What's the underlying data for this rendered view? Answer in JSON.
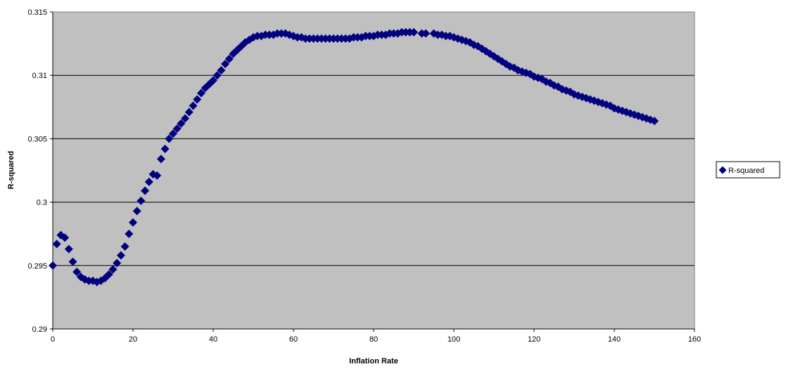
{
  "chart_data": {
    "type": "scatter",
    "xlabel": "Inflation Rate",
    "ylabel": "R-squared",
    "xlim": [
      0,
      160
    ],
    "ylim": [
      0.29,
      0.315
    ],
    "x_ticks": [
      0,
      20,
      40,
      60,
      80,
      100,
      120,
      140,
      160
    ],
    "y_ticks": [
      0.29,
      0.295,
      0.3,
      0.305,
      0.31,
      0.315
    ],
    "x_tick_labels": [
      "0",
      "20",
      "40",
      "60",
      "80",
      "100",
      "120",
      "140",
      "160"
    ],
    "y_tick_labels": [
      "0.29",
      "0.295",
      "0.3",
      "0.305",
      "0.31",
      "0.315"
    ],
    "grid": "horizontal",
    "legend_position": "right",
    "colors": {
      "plot_background": "#c0c0c0",
      "marker": "#000080",
      "gridline": "#000000"
    },
    "series": [
      {
        "name": "R-squared",
        "marker": "diamond",
        "points": [
          [
            0,
            0.295
          ],
          [
            1,
            0.2967
          ],
          [
            2,
            0.2974
          ],
          [
            3,
            0.2972
          ],
          [
            4,
            0.2963
          ],
          [
            5,
            0.2953
          ],
          [
            6,
            0.2945
          ],
          [
            7,
            0.2941
          ],
          [
            8,
            0.2939
          ],
          [
            9,
            0.2938
          ],
          [
            10,
            0.2938
          ],
          [
            11,
            0.2937
          ],
          [
            12,
            0.2938
          ],
          [
            13,
            0.294
          ],
          [
            14,
            0.2943
          ],
          [
            15,
            0.2947
          ],
          [
            16,
            0.2952
          ],
          [
            17,
            0.2958
          ],
          [
            18,
            0.2965
          ],
          [
            19,
            0.2975
          ],
          [
            20,
            0.2984
          ],
          [
            21,
            0.2993
          ],
          [
            22,
            0.3001
          ],
          [
            23,
            0.3009
          ],
          [
            24,
            0.3016
          ],
          [
            25,
            0.3022
          ],
          [
            26,
            0.3021
          ],
          [
            27,
            0.3034
          ],
          [
            28,
            0.3042
          ],
          [
            29,
            0.305
          ],
          [
            30,
            0.3054
          ],
          [
            31,
            0.3058
          ],
          [
            32,
            0.3062
          ],
          [
            33,
            0.3066
          ],
          [
            34,
            0.3071
          ],
          [
            35,
            0.3076
          ],
          [
            36,
            0.3081
          ],
          [
            37,
            0.3086
          ],
          [
            38,
            0.309
          ],
          [
            39,
            0.3093
          ],
          [
            40,
            0.3096
          ],
          [
            41,
            0.31
          ],
          [
            42,
            0.3104
          ],
          [
            43,
            0.3109
          ],
          [
            44,
            0.3113
          ],
          [
            45,
            0.3117
          ],
          [
            46,
            0.312
          ],
          [
            47,
            0.3123
          ],
          [
            48,
            0.3126
          ],
          [
            49,
            0.3128
          ],
          [
            50,
            0.313
          ],
          [
            51,
            0.3131
          ],
          [
            52,
            0.3131
          ],
          [
            53,
            0.3132
          ],
          [
            54,
            0.3132
          ],
          [
            55,
            0.3132
          ],
          [
            56,
            0.3133
          ],
          [
            57,
            0.3133
          ],
          [
            58,
            0.3133
          ],
          [
            59,
            0.3132
          ],
          [
            60,
            0.3131
          ],
          [
            61,
            0.313
          ],
          [
            62,
            0.313
          ],
          [
            63,
            0.3129
          ],
          [
            64,
            0.3129
          ],
          [
            65,
            0.3129
          ],
          [
            66,
            0.3129
          ],
          [
            67,
            0.3129
          ],
          [
            68,
            0.3129
          ],
          [
            69,
            0.3129
          ],
          [
            70,
            0.3129
          ],
          [
            71,
            0.3129
          ],
          [
            72,
            0.3129
          ],
          [
            73,
            0.3129
          ],
          [
            74,
            0.3129
          ],
          [
            75,
            0.313
          ],
          [
            76,
            0.313
          ],
          [
            77,
            0.313
          ],
          [
            78,
            0.3131
          ],
          [
            79,
            0.3131
          ],
          [
            80,
            0.3131
          ],
          [
            81,
            0.3132
          ],
          [
            82,
            0.3132
          ],
          [
            83,
            0.3132
          ],
          [
            84,
            0.3133
          ],
          [
            85,
            0.3133
          ],
          [
            86,
            0.3133
          ],
          [
            87,
            0.3134
          ],
          [
            88,
            0.3134
          ],
          [
            89,
            0.3134
          ],
          [
            90,
            0.3134
          ],
          [
            92,
            0.3133
          ],
          [
            93,
            0.3133
          ],
          [
            95,
            0.3133
          ],
          [
            96,
            0.3132
          ],
          [
            97,
            0.3132
          ],
          [
            98,
            0.3131
          ],
          [
            99,
            0.3131
          ],
          [
            100,
            0.313
          ],
          [
            101,
            0.3129
          ],
          [
            102,
            0.3128
          ],
          [
            103,
            0.3127
          ],
          [
            104,
            0.3126
          ],
          [
            105,
            0.3124
          ],
          [
            106,
            0.3123
          ],
          [
            107,
            0.3121
          ],
          [
            108,
            0.3119
          ],
          [
            109,
            0.3117
          ],
          [
            110,
            0.3115
          ],
          [
            111,
            0.3113
          ],
          [
            112,
            0.3111
          ],
          [
            113,
            0.3109
          ],
          [
            114,
            0.3107
          ],
          [
            115,
            0.3106
          ],
          [
            116,
            0.3104
          ],
          [
            117,
            0.3103
          ],
          [
            118,
            0.3102
          ],
          [
            119,
            0.3101
          ],
          [
            120,
            0.3099
          ],
          [
            121,
            0.3098
          ],
          [
            122,
            0.3097
          ],
          [
            123,
            0.3095
          ],
          [
            124,
            0.3094
          ],
          [
            125,
            0.3092
          ],
          [
            126,
            0.3091
          ],
          [
            127,
            0.3089
          ],
          [
            128,
            0.3088
          ],
          [
            129,
            0.3087
          ],
          [
            130,
            0.3085
          ],
          [
            131,
            0.3084
          ],
          [
            132,
            0.3083
          ],
          [
            133,
            0.3082
          ],
          [
            134,
            0.3081
          ],
          [
            135,
            0.308
          ],
          [
            136,
            0.3079
          ],
          [
            137,
            0.3078
          ],
          [
            138,
            0.3077
          ],
          [
            139,
            0.3076
          ],
          [
            140,
            0.3074
          ],
          [
            141,
            0.3073
          ],
          [
            142,
            0.3072
          ],
          [
            143,
            0.3071
          ],
          [
            144,
            0.307
          ],
          [
            145,
            0.3069
          ],
          [
            146,
            0.3068
          ],
          [
            147,
            0.3067
          ],
          [
            148,
            0.3066
          ],
          [
            149,
            0.3065
          ],
          [
            150,
            0.3064
          ]
        ]
      }
    ]
  }
}
